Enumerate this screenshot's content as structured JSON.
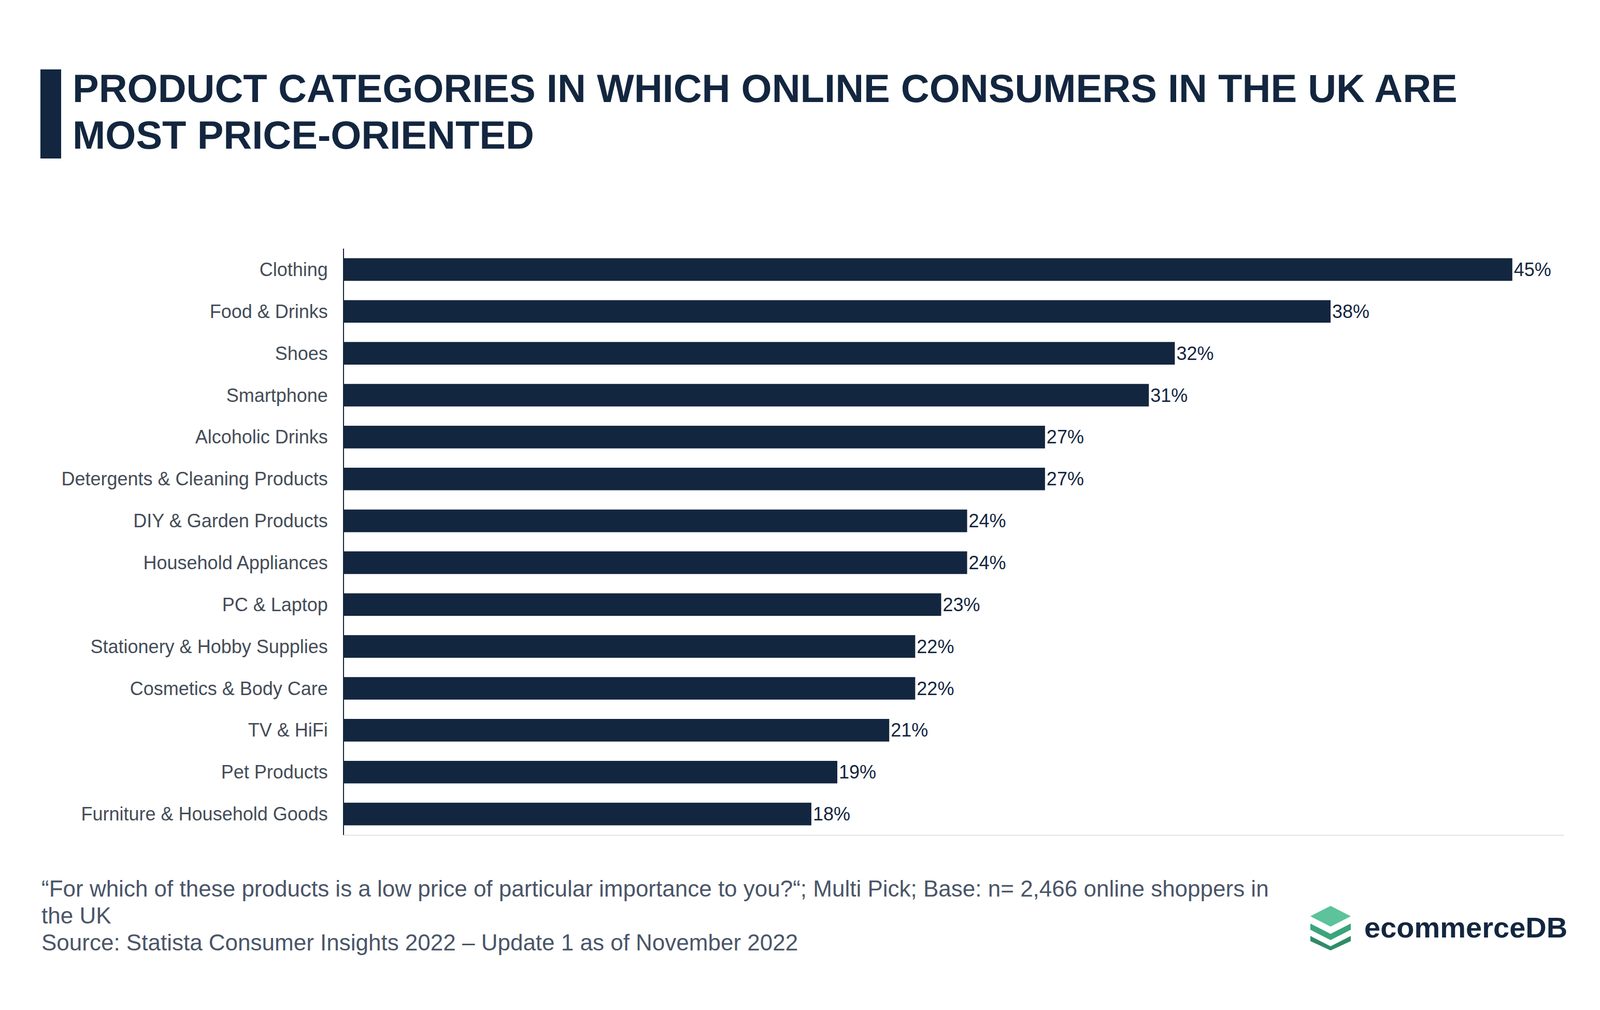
{
  "chart_data": {
    "type": "bar",
    "title": "PRODUCT CATEGORIES IN WHICH ONLINE CONSUMERS IN THE UK ARE MOST PRICE-ORIENTED",
    "orientation": "horizontal",
    "categories": [
      "Clothing",
      "Food & Drinks",
      "Shoes",
      "Smartphone",
      "Alcoholic Drinks",
      "Detergents & Cleaning Products",
      "DIY & Garden Products",
      "Household Appliances",
      "PC & Laptop",
      "Stationery & Hobby Supplies",
      "Cosmetics & Body Care",
      "TV & HiFi",
      "Pet Products",
      "Furniture & Household Goods"
    ],
    "values": [
      45,
      38,
      32,
      31,
      27,
      27,
      24,
      24,
      23,
      22,
      22,
      21,
      19,
      18
    ],
    "value_labels": [
      "45%",
      "38%",
      "32%",
      "31%",
      "27%",
      "27%",
      "24%",
      "24%",
      "23%",
      "22%",
      "22%",
      "21%",
      "19%",
      "18%"
    ],
    "color": "#13263f",
    "xlim": [
      0,
      47
    ],
    "data_labels": true,
    "tick_labels": "y",
    "grid": false,
    "annotations": [
      "“For which of these products is a low price of particular importance to you?“; Multi Pick; Base: n= 2,466 online shoppers in the UK",
      "Source: Statista Consumer Insights 2022 – Update 1 as of November 2022",
      "ecommerceDB"
    ]
  }
}
